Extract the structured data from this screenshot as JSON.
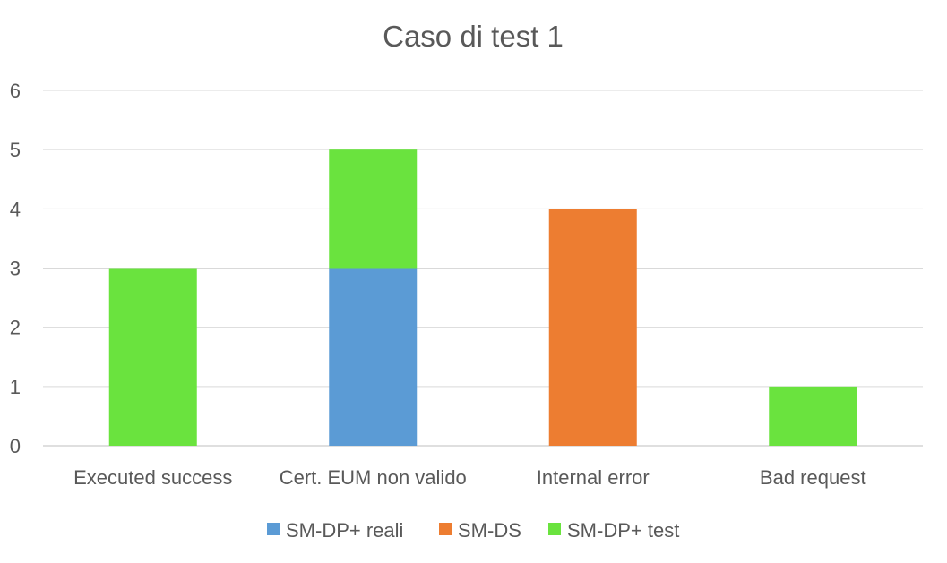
{
  "chart_data": {
    "type": "bar",
    "stacked": true,
    "title": "Caso di test 1",
    "xlabel": "",
    "ylabel": "",
    "ylim": [
      0,
      6
    ],
    "yticks": [
      "0",
      "1",
      "2",
      "3",
      "4",
      "5",
      "6"
    ],
    "grid": true,
    "legend_position": "bottom",
    "categories": [
      "Executed success",
      "Cert. EUM non valido",
      "Internal error",
      "Bad request"
    ],
    "series": [
      {
        "name": "SM-DP+ reali",
        "values": [
          0,
          3,
          0,
          0
        ],
        "color": "#5b9bd5"
      },
      {
        "name": "SM-DS",
        "values": [
          0,
          0,
          4,
          0
        ],
        "color": "#ed7d31"
      },
      {
        "name": "SM-DP+ test",
        "values": [
          3,
          2,
          0,
          1
        ],
        "color": "#6ae33e"
      }
    ]
  }
}
